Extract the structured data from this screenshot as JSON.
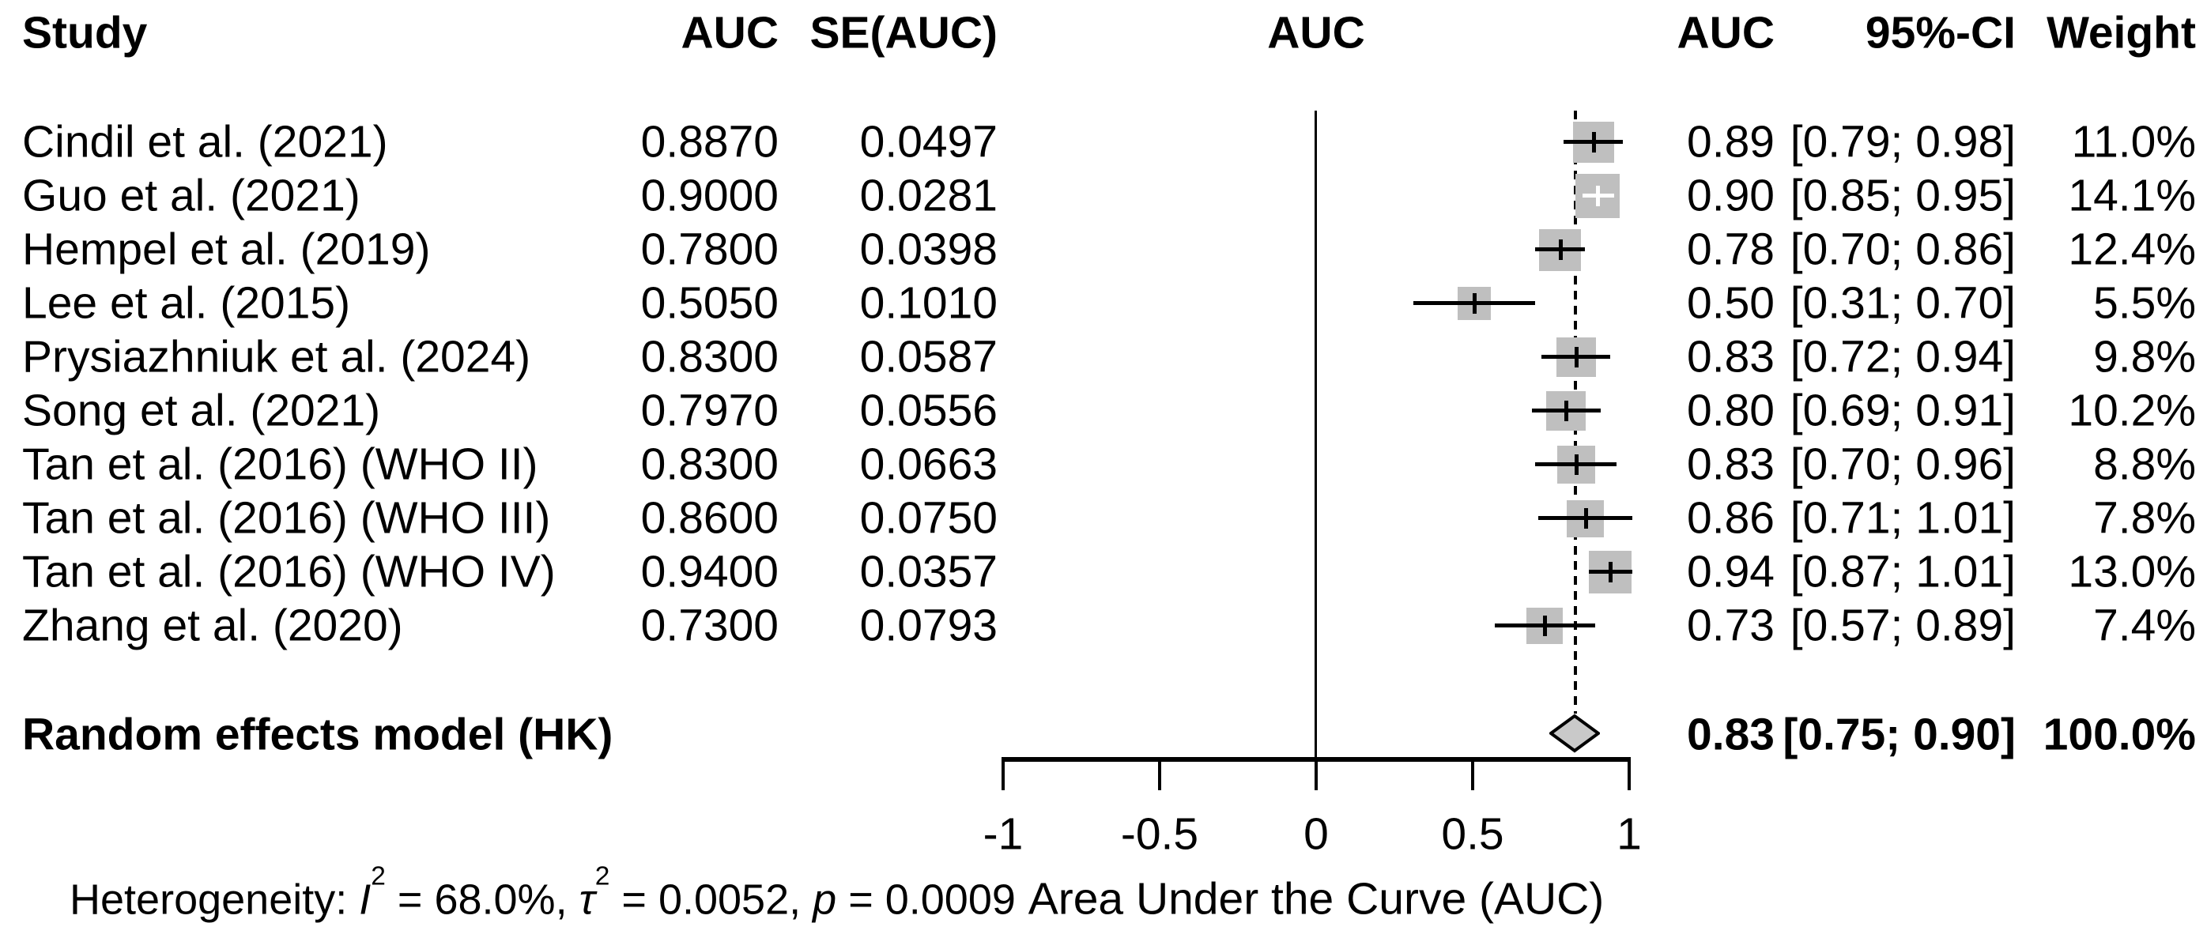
{
  "headers": {
    "study": "Study",
    "auc": "AUC",
    "se": "SE(AUC)",
    "plot_auc": "AUC",
    "auc_right": "AUC",
    "ci": "95%-CI",
    "weight": "Weight"
  },
  "summary_row": {
    "label": "Random effects model (HK)",
    "est": "0.83",
    "ci": "[0.75; 0.90]",
    "weight": "100.0%"
  },
  "axis": {
    "title": "Area Under the Curve (AUC)",
    "ticks": [
      "-1",
      "-0.5",
      "0",
      "0.5",
      "1"
    ]
  },
  "footer": {
    "label": "Heterogeneity:",
    "i_sym": "I",
    "i_sup": "2",
    "i_val": "68.0%",
    "tau_sym": "τ",
    "tau_sup": "2",
    "tau_val": "0.0052",
    "p_sym": "p",
    "p_val": "0.0009",
    "eq": " = ",
    "sep": ", "
  },
  "colors": {
    "square": "#bfbfbf",
    "diamond": "#c9c9c9",
    "line": "#000000",
    "background": "#ffffff",
    "text": "#000000"
  },
  "chart_data": {
    "type": "scatter",
    "subtype": "forest-plot",
    "title": "",
    "xlabel": "Area Under the Curve (AUC)",
    "x_range": [
      -1,
      1
    ],
    "x_ticks": [
      -1,
      -0.5,
      0,
      0.5,
      1
    ],
    "grid": false,
    "reference_lines": [
      {
        "x": 0,
        "style": "solid"
      },
      {
        "x": 0.83,
        "style": "dashed"
      }
    ],
    "studies": [
      {
        "study": "Cindil et al. (2021)",
        "auc": 0.887,
        "se_auc": 0.0497,
        "estimate": 0.89,
        "ci_lower": 0.79,
        "ci_upper": 0.98,
        "weight_pct": 11.0,
        "display": {
          "auc": "0.8870",
          "se": "0.0497",
          "est": "0.89",
          "ci": "[0.79; 0.98]",
          "weight": "11.0%"
        }
      },
      {
        "study": "Guo et al. (2021)",
        "auc": 0.9,
        "se_auc": 0.0281,
        "estimate": 0.9,
        "ci_lower": 0.85,
        "ci_upper": 0.95,
        "weight_pct": 14.1,
        "display": {
          "auc": "0.9000",
          "se": "0.0281",
          "est": "0.90",
          "ci": "[0.85; 0.95]",
          "weight": "14.1%"
        }
      },
      {
        "study": "Hempel et al. (2019)",
        "auc": 0.78,
        "se_auc": 0.0398,
        "estimate": 0.78,
        "ci_lower": 0.7,
        "ci_upper": 0.86,
        "weight_pct": 12.4,
        "display": {
          "auc": "0.7800",
          "se": "0.0398",
          "est": "0.78",
          "ci": "[0.70; 0.86]",
          "weight": "12.4%"
        }
      },
      {
        "study": "Lee et al. (2015)",
        "auc": 0.505,
        "se_auc": 0.101,
        "estimate": 0.5,
        "ci_lower": 0.31,
        "ci_upper": 0.7,
        "weight_pct": 5.5,
        "display": {
          "auc": "0.5050",
          "se": "0.1010",
          "est": "0.50",
          "ci": "[0.31; 0.70]",
          "weight": "5.5%"
        }
      },
      {
        "study": "Prysiazhniuk et al. (2024)",
        "auc": 0.83,
        "se_auc": 0.0587,
        "estimate": 0.83,
        "ci_lower": 0.72,
        "ci_upper": 0.94,
        "weight_pct": 9.8,
        "display": {
          "auc": "0.8300",
          "se": "0.0587",
          "est": "0.83",
          "ci": "[0.72; 0.94]",
          "weight": "9.8%"
        }
      },
      {
        "study": "Song et al. (2021)",
        "auc": 0.797,
        "se_auc": 0.0556,
        "estimate": 0.8,
        "ci_lower": 0.69,
        "ci_upper": 0.91,
        "weight_pct": 10.2,
        "display": {
          "auc": "0.7970",
          "se": "0.0556",
          "est": "0.80",
          "ci": "[0.69; 0.91]",
          "weight": "10.2%"
        }
      },
      {
        "study": "Tan et al. (2016) (WHO II)",
        "auc": 0.83,
        "se_auc": 0.0663,
        "estimate": 0.83,
        "ci_lower": 0.7,
        "ci_upper": 0.96,
        "weight_pct": 8.8,
        "display": {
          "auc": "0.8300",
          "se": "0.0663",
          "est": "0.83",
          "ci": "[0.70; 0.96]",
          "weight": "8.8%"
        }
      },
      {
        "study": "Tan et al. (2016) (WHO III)",
        "auc": 0.86,
        "se_auc": 0.075,
        "estimate": 0.86,
        "ci_lower": 0.71,
        "ci_upper": 1.01,
        "weight_pct": 7.8,
        "display": {
          "auc": "0.8600",
          "se": "0.0750",
          "est": "0.86",
          "ci": "[0.71; 1.01]",
          "weight": "7.8%"
        }
      },
      {
        "study": "Tan et al. (2016) (WHO IV)",
        "auc": 0.94,
        "se_auc": 0.0357,
        "estimate": 0.94,
        "ci_lower": 0.87,
        "ci_upper": 1.01,
        "weight_pct": 13.0,
        "display": {
          "auc": "0.9400",
          "se": "0.0357",
          "est": "0.94",
          "ci": "[0.87; 1.01]",
          "weight": "13.0%"
        }
      },
      {
        "study": "Zhang et al. (2020)",
        "auc": 0.73,
        "se_auc": 0.0793,
        "estimate": 0.73,
        "ci_lower": 0.57,
        "ci_upper": 0.89,
        "weight_pct": 7.4,
        "display": {
          "auc": "0.7300",
          "se": "0.0793",
          "est": "0.73",
          "ci": "[0.57; 0.89]",
          "weight": "7.4%"
        }
      }
    ],
    "summary": {
      "label": "Random effects model (HK)",
      "estimate": 0.83,
      "ci_lower": 0.75,
      "ci_upper": 0.9,
      "weight_pct": 100.0
    },
    "heterogeneity": {
      "I2_pct": 68.0,
      "tau2": 0.0052,
      "p": 0.0009
    }
  }
}
